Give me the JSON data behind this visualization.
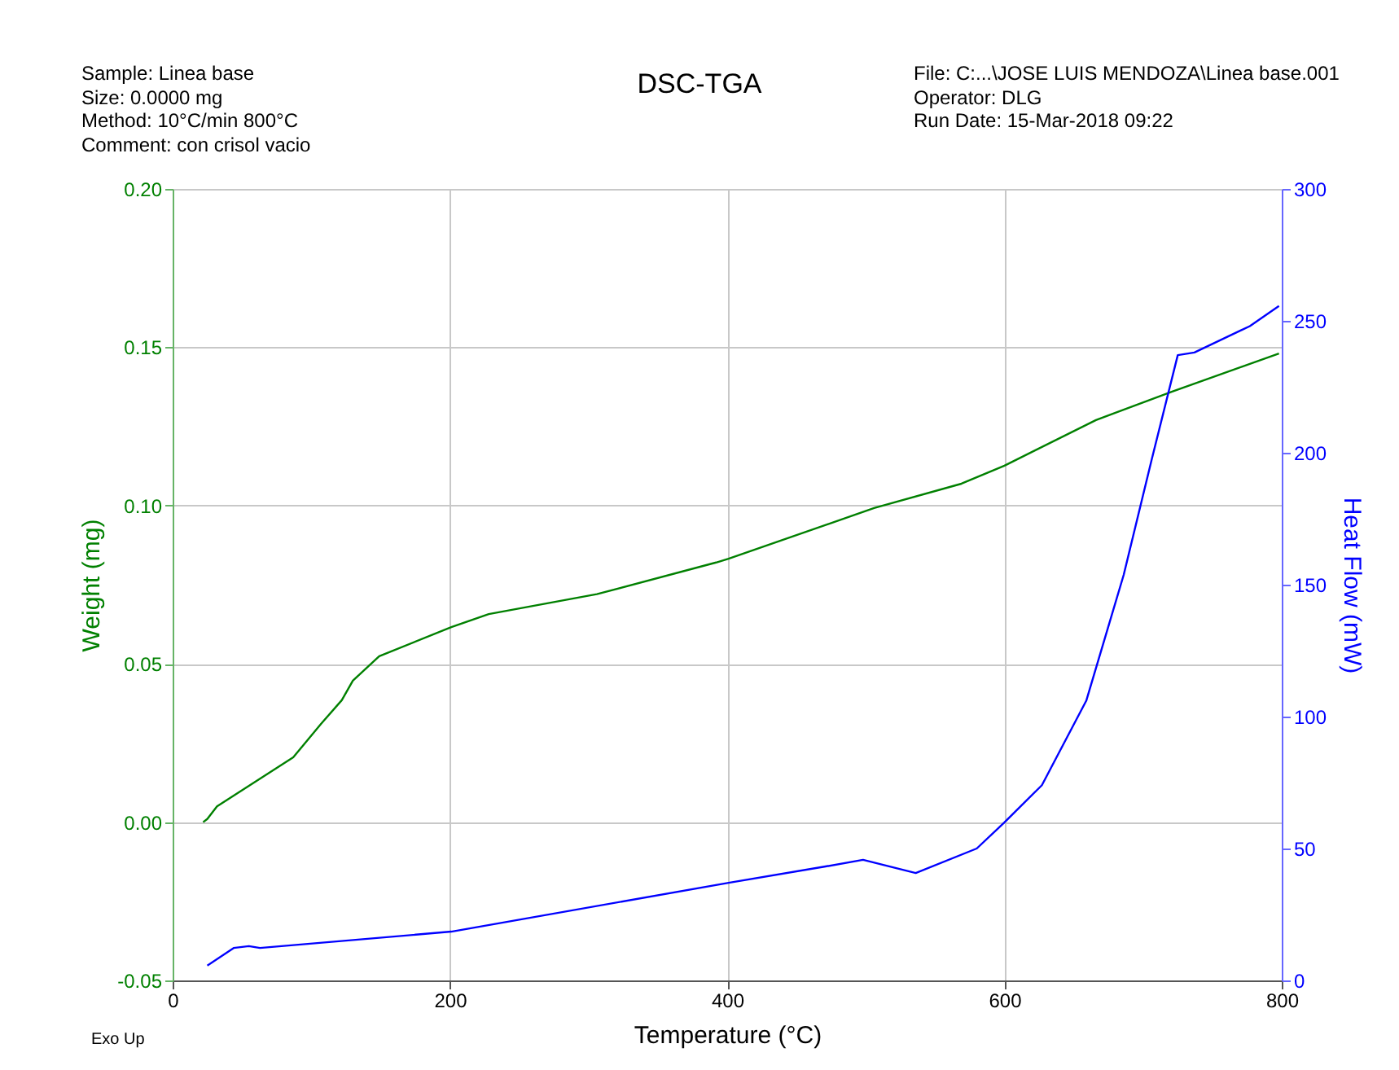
{
  "chart_data": {
    "type": "line",
    "title": "DSC-TGA",
    "xlabel": "Temperature (°C)",
    "ylabel": "Weight (mg)",
    "y2label": "Heat Flow (mW)",
    "annotations": [
      "Sample: Linea base",
      "Size:  0.0000 mg",
      "Method: 10°C/min 800°C",
      "Comment: con crisol vacio",
      "File: C:...\\JOSE LUIS MENDOZA\\Linea base.001",
      "Operator: DLG",
      "Run Date: 15-Mar-2018 09:22",
      "Exo Up"
    ],
    "xlim": [
      0,
      800
    ],
    "xticks": [
      0,
      200,
      400,
      600,
      800
    ],
    "ylim": [
      -0.05,
      0.2
    ],
    "yticks": [
      {
        "value": -0.05,
        "label": "-0.05"
      },
      {
        "value": 0,
        "label": "0.00"
      },
      {
        "value": 0.05,
        "label": "0.05"
      },
      {
        "value": 0.1,
        "label": "0.10"
      },
      {
        "value": 0.15,
        "label": "0.15"
      },
      {
        "value": 0.2,
        "label": "0.20"
      }
    ],
    "y2lim": [
      0,
      300
    ],
    "y2ticks": [
      0,
      50,
      100,
      150,
      200,
      250,
      300
    ],
    "grid": true,
    "line_style": "solid",
    "marker": "none",
    "series": [
      {
        "color": "#008000",
        "x": [
          22,
          25,
          32,
          87,
          107,
          122,
          130,
          149,
          201,
          228,
          306,
          392,
          401,
          506,
          569,
          600,
          666,
          721,
          798
        ],
        "values": [
          0.0,
          0.001,
          0.005,
          0.0205,
          0.031,
          0.0385,
          0.0447,
          0.0524,
          0.0616,
          0.0657,
          0.072,
          0.082,
          0.0832,
          0.0992,
          0.1069,
          0.1126,
          0.127,
          0.136,
          0.148
        ]
      },
      {
        "color": "#0000ff",
        "axis": "y2",
        "x": [
          25,
          44,
          55,
          63,
          201,
          401,
          471,
          498,
          536,
          580,
          600,
          627,
          659,
          686,
          706,
          725,
          737,
          777,
          798
        ],
        "values": [
          5.6,
          12.3,
          13,
          12.3,
          18.5,
          37,
          43.2,
          45.7,
          40.7,
          50,
          59.9,
          74,
          106,
          153.7,
          197,
          237,
          238,
          248,
          255.6
        ]
      }
    ]
  }
}
